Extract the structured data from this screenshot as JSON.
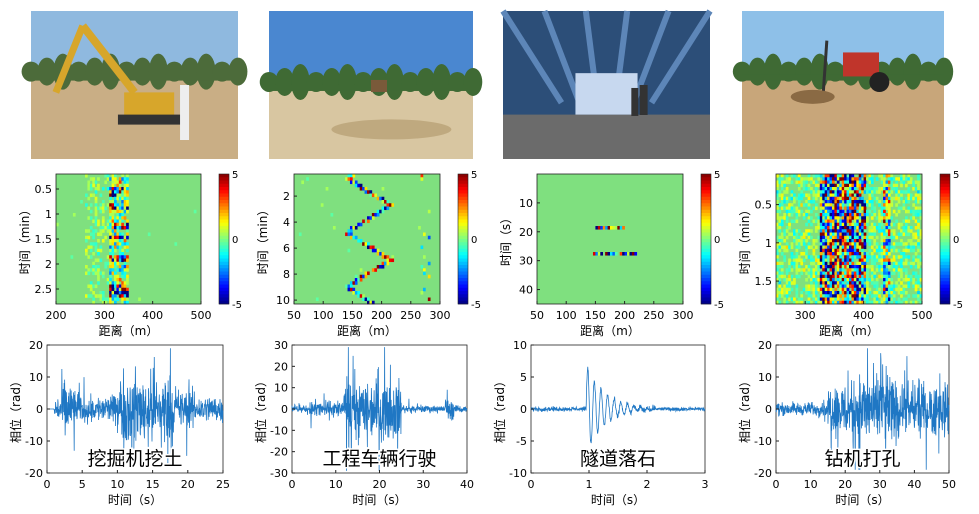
{
  "scenes": [
    {
      "key": "excavator",
      "photo": {
        "name": "photo-excavator",
        "sky": "#8fb9df",
        "ground": "#c9ae85",
        "trees": "#4c6b3a",
        "accent": "#d7a62b",
        "horizon": 0.45
      },
      "waterfall": {
        "xlim": [
          200,
          500
        ],
        "xticks": [
          200,
          300,
          400,
          500
        ],
        "ylim": [
          0.2,
          2.8
        ],
        "yticks": [
          0.5,
          1,
          1.5,
          2,
          2.5
        ],
        "ylabel": "时间（min）",
        "xlabel": "距离（m）",
        "colorbar": [
          -5,
          0,
          5
        ],
        "pattern": "excavator"
      },
      "trace": {
        "xlim": [
          0,
          25
        ],
        "xticks": [
          0,
          5,
          10,
          15,
          20,
          25
        ],
        "ylim": [
          -20,
          20
        ],
        "yticks": [
          -20,
          -10,
          0,
          10,
          20
        ],
        "ylabel": "相位（rad）",
        "xlabel": "时间（s）",
        "caption": "挖掘机挖土",
        "segments": [
          [
            1,
            25,
            4
          ],
          [
            2,
            4,
            9
          ],
          [
            10,
            18,
            11
          ],
          [
            16,
            21,
            6
          ]
        ]
      }
    },
    {
      "key": "vehicle",
      "photo": {
        "name": "photo-vehicle",
        "sky": "#4a87d0",
        "ground": "#d8c6a1",
        "trees": "#3f6a34",
        "accent": "#7a5a3a",
        "horizon": 0.52
      },
      "waterfall": {
        "xlim": [
          50,
          300
        ],
        "xticks": [
          50,
          100,
          150,
          200,
          250,
          300
        ],
        "ylim": [
          0.3,
          10.3
        ],
        "yticks": [
          2,
          4,
          6,
          8,
          10
        ],
        "ylabel": "时间（min）",
        "xlabel": "距离（m）",
        "colorbar": [
          -5,
          0,
          5
        ],
        "pattern": "vehicle"
      },
      "trace": {
        "xlim": [
          0,
          40
        ],
        "xticks": [
          0,
          10,
          20,
          30,
          40
        ],
        "ylim": [
          -30,
          30
        ],
        "yticks": [
          -30,
          -20,
          -10,
          0,
          10,
          20,
          30
        ],
        "ylabel": "相位（rad）",
        "xlabel": "时间（s）",
        "caption": "工程车辆行驶",
        "segments": [
          [
            0,
            40,
            1.5
          ],
          [
            4,
            12,
            4
          ],
          [
            12,
            25,
            14
          ],
          [
            35,
            37,
            5
          ]
        ]
      }
    },
    {
      "key": "tunnel",
      "photo": {
        "name": "photo-tunnel",
        "sky": "#2c4e78",
        "ground": "#6b6b6b",
        "trees": "#1f3c63",
        "accent": "#c7d8ef",
        "horizon": 0.7
      },
      "waterfall": {
        "xlim": [
          50,
          300
        ],
        "xticks": [
          50,
          100,
          150,
          200,
          250,
          300
        ],
        "ylim": [
          0,
          45
        ],
        "yticks": [
          10,
          20,
          30,
          40
        ],
        "ylabel": "时间（s）",
        "xlabel": "距离（m）",
        "colorbar": [
          -5,
          0,
          5
        ],
        "pattern": "tunnel"
      },
      "trace": {
        "xlim": [
          0,
          3
        ],
        "xticks": [
          0,
          1,
          2,
          3
        ],
        "ylim": [
          -10,
          10
        ],
        "yticks": [
          -10,
          -5,
          0,
          5,
          10
        ],
        "ylabel": "相位（rad）",
        "xlabel": "时间（s）",
        "caption": "隧道落石",
        "segments": [
          [
            0,
            3,
            0.3
          ]
        ]
      }
    },
    {
      "key": "drilling",
      "photo": {
        "name": "photo-drilling",
        "sky": "#8ec0e8",
        "ground": "#c8a67a",
        "trees": "#3f6a34",
        "accent": "#c0352b",
        "horizon": 0.45
      },
      "waterfall": {
        "xlim": [
          250,
          500
        ],
        "xticks": [
          300,
          400,
          500
        ],
        "ylim": [
          0.1,
          1.8
        ],
        "yticks": [
          0.5,
          1,
          1.5
        ],
        "ylabel": "时间（min）",
        "xlabel": "距离（m）",
        "colorbar": [
          -5,
          0,
          5
        ],
        "pattern": "drilling"
      },
      "trace": {
        "xlim": [
          0,
          50
        ],
        "xticks": [
          0,
          10,
          20,
          30,
          40,
          50
        ],
        "ylim": [
          -20,
          20
        ],
        "yticks": [
          -20,
          -10,
          0,
          10,
          20
        ],
        "ylabel": "相位（rad）",
        "xlabel": "时间（s）",
        "caption": "钻机打孔",
        "segments": [
          [
            0,
            50,
            2
          ],
          [
            15,
            50,
            8
          ],
          [
            22,
            34,
            11
          ]
        ]
      }
    }
  ],
  "colors": {
    "trace": "#1f77c4",
    "waterfall_bg": "#7fe07f"
  }
}
